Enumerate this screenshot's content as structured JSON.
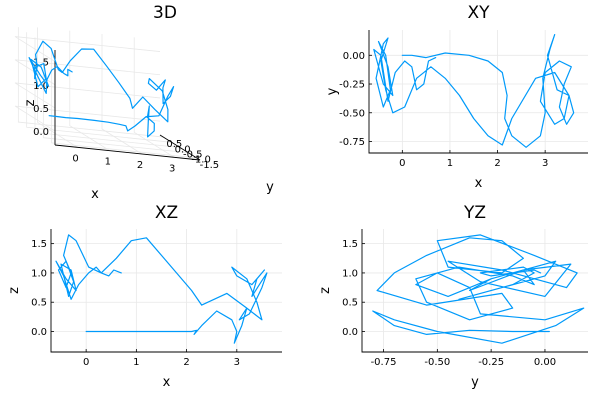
{
  "colors": {
    "series": "#009AFA",
    "grid": "#E8E8E8",
    "axis": "#000000"
  },
  "chart_data": [
    {
      "type": "line3d",
      "title": "3D",
      "xlabel": "x",
      "ylabel": "y",
      "zlabel": "z",
      "xlim": [
        -0.7,
        3.8
      ],
      "ylim": [
        -1.7,
        0.7
      ],
      "zlim": [
        -0.3,
        1.75
      ],
      "xticks": [
        0,
        1,
        2,
        3
      ],
      "xtick_labels": [
        "0",
        "1",
        "2",
        "3"
      ],
      "yticks": [
        -1.5,
        -1.0,
        -0.5,
        0.0,
        0.5
      ],
      "ytick_labels": [
        "-1.5",
        "-1.0",
        "-0.5",
        "0.0",
        "0.5"
      ],
      "zticks": [
        0.0,
        0.5,
        1.0,
        1.5
      ],
      "ztick_labels": [
        "0.0",
        "0.5",
        "1.0",
        "1.5"
      ],
      "grid": true,
      "legend": "none"
    },
    {
      "type": "line",
      "title": "XY",
      "xlabel": "x",
      "ylabel": "y",
      "xlim": [
        -0.7,
        3.9
      ],
      "ylim": [
        -0.85,
        0.22
      ],
      "xticks": [
        0,
        1,
        2,
        3
      ],
      "xtick_labels": [
        "0",
        "1",
        "2",
        "3"
      ],
      "yticks": [
        0.0,
        -0.25,
        -0.5,
        -0.75
      ],
      "ytick_labels": [
        "0.00",
        "-0.25",
        "-0.50",
        "-0.75"
      ],
      "grid": true,
      "legend": "none"
    },
    {
      "type": "line",
      "title": "XZ",
      "xlabel": "x",
      "ylabel": "z",
      "xlim": [
        -0.7,
        3.9
      ],
      "ylim": [
        -0.35,
        1.75
      ],
      "xticks": [
        0,
        1,
        2,
        3
      ],
      "xtick_labels": [
        "0",
        "1",
        "2",
        "3"
      ],
      "yticks": [
        0.0,
        0.5,
        1.0,
        1.5
      ],
      "ytick_labels": [
        "0.0",
        "0.5",
        "1.0",
        "1.5"
      ],
      "grid": true,
      "legend": "none"
    },
    {
      "type": "line",
      "title": "YZ",
      "xlabel": "y",
      "ylabel": "z",
      "xlim": [
        -0.85,
        0.2
      ],
      "ylim": [
        -0.35,
        1.75
      ],
      "xticks": [
        -0.75,
        -0.5,
        -0.25,
        0.0
      ],
      "xtick_labels": [
        "-0.75",
        "-0.50",
        "-0.25",
        "0.00"
      ],
      "yticks": [
        0.0,
        0.5,
        1.0,
        1.5
      ],
      "ytick_labels": [
        "0.0",
        "0.5",
        "1.0",
        "1.5"
      ],
      "grid": true,
      "legend": "none"
    }
  ],
  "trajectory": {
    "x": [
      0.0,
      0.2,
      0.5,
      0.9,
      1.4,
      1.8,
      2.1,
      2.2,
      2.15,
      2.3,
      2.6,
      2.9,
      3.0,
      2.95,
      3.1,
      3.2,
      3.05,
      3.25,
      3.5,
      3.6,
      3.45,
      3.3,
      3.4,
      3.55,
      3.3,
      3.0,
      2.9,
      3.2,
      3.4,
      3.5,
      3.2,
      2.8,
      2.3,
      2.1,
      1.8,
      1.5,
      1.2,
      0.9,
      0.6,
      0.3,
      0.05,
      -0.2,
      -0.35,
      -0.45,
      -0.3,
      -0.4,
      -0.55,
      -0.4,
      -0.25,
      -0.35,
      -0.5,
      -0.3,
      -0.2,
      -0.4,
      -0.6,
      -0.45,
      -0.3,
      -0.15,
      0.05,
      0.2,
      0.3,
      0.45,
      0.55,
      0.7
    ],
    "y": [
      0.0,
      0.0,
      -0.02,
      0.02,
      0.0,
      -0.05,
      -0.15,
      -0.35,
      -0.55,
      -0.7,
      -0.8,
      -0.7,
      -0.5,
      -0.2,
      0.05,
      0.18,
      0.0,
      -0.3,
      -0.35,
      -0.5,
      -0.6,
      -0.45,
      -0.25,
      -0.1,
      -0.05,
      -0.15,
      -0.4,
      -0.6,
      -0.55,
      -0.35,
      -0.15,
      -0.2,
      -0.55,
      -0.78,
      -0.7,
      -0.55,
      -0.35,
      -0.2,
      -0.1,
      -0.2,
      -0.45,
      -0.5,
      -0.3,
      -0.05,
      0.15,
      0.1,
      -0.2,
      -0.45,
      -0.3,
      0.0,
      0.12,
      -0.1,
      -0.35,
      -0.25,
      0.05,
      0.0,
      -0.4,
      -0.15,
      -0.05,
      -0.1,
      -0.3,
      -0.25,
      -0.05,
      -0.02
    ],
    "z": [
      0.0,
      0.0,
      0.0,
      0.0,
      0.0,
      0.0,
      0.0,
      0.02,
      -0.05,
      0.1,
      0.35,
      0.2,
      0.0,
      -0.2,
      0.1,
      0.4,
      0.2,
      0.3,
      0.75,
      1.0,
      0.8,
      0.6,
      0.9,
      1.05,
      0.8,
      0.95,
      1.1,
      0.9,
      0.5,
      0.2,
      0.4,
      0.65,
      0.45,
      0.7,
      1.0,
      1.3,
      1.6,
      1.55,
      1.25,
      1.0,
      1.1,
      1.55,
      1.65,
      1.3,
      1.0,
      0.75,
      1.05,
      1.2,
      0.85,
      0.6,
      1.15,
      1.05,
      0.7,
      0.9,
      1.2,
      0.95,
      0.55,
      0.8,
      1.0,
      1.1,
      1.0,
      0.95,
      1.05,
      1.0
    ]
  }
}
